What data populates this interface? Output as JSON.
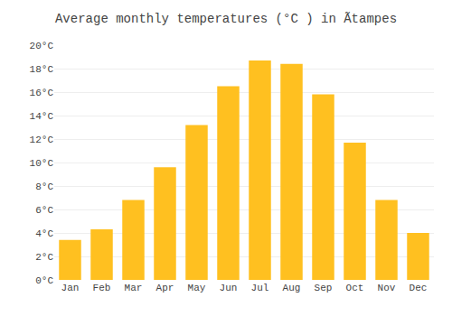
{
  "chart_data": {
    "type": "bar",
    "title": "Average monthly temperatures (°C ) in Ãtampes",
    "categories": [
      "Jan",
      "Feb",
      "Mar",
      "Apr",
      "May",
      "Jun",
      "Jul",
      "Aug",
      "Sep",
      "Oct",
      "Nov",
      "Dec"
    ],
    "values": [
      3.4,
      4.3,
      6.8,
      9.6,
      13.2,
      16.5,
      18.7,
      18.4,
      15.8,
      11.7,
      6.8,
      4.0
    ],
    "color": "#FFC020",
    "ylim": [
      0,
      20
    ],
    "yticks": [
      {
        "value": 0,
        "label": "0°C"
      },
      {
        "value": 2,
        "label": "2°C"
      },
      {
        "value": 4,
        "label": "4°C"
      },
      {
        "value": 6,
        "label": "6°C"
      },
      {
        "value": 8,
        "label": "8°C"
      },
      {
        "value": 10,
        "label": "10°C"
      },
      {
        "value": 12,
        "label": "12°C"
      },
      {
        "value": 14,
        "label": "14°C"
      },
      {
        "value": 16,
        "label": "16°C"
      },
      {
        "value": 18,
        "label": "18°C"
      },
      {
        "value": 20,
        "label": "20°C"
      }
    ],
    "grid": true
  }
}
